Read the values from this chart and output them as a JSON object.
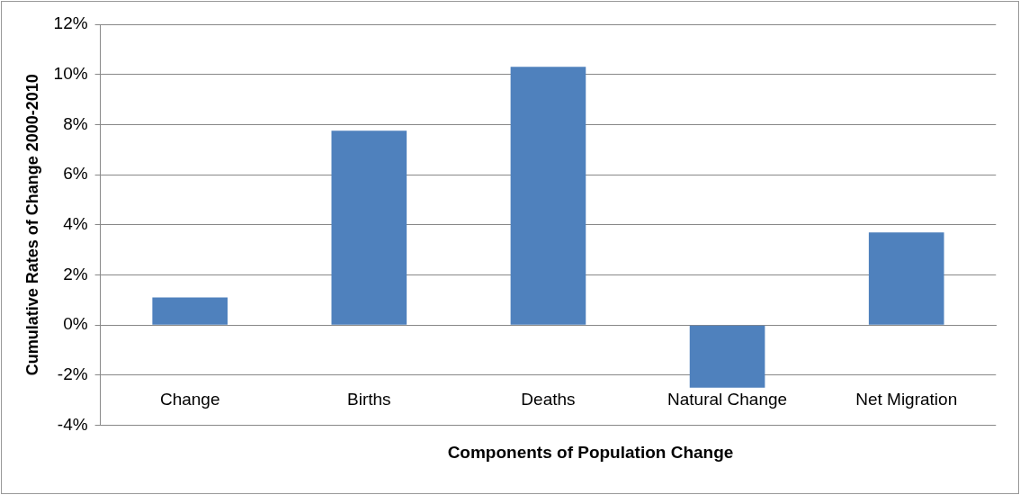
{
  "chart_data": {
    "type": "bar",
    "xlabel": "Components of Population Change",
    "ylabel": "Cumulative Rates of Change 2000-2010",
    "categories": [
      "Change",
      "Births",
      "Deaths",
      "Natural Change",
      "Net Migration"
    ],
    "values": [
      1.1,
      7.75,
      10.3,
      -2.5,
      3.7
    ],
    "color": "#4f81bd",
    "ylim": [
      -4,
      12
    ],
    "yticks": [
      {
        "value": -4,
        "label": "-4%"
      },
      {
        "value": -2,
        "label": "-2%"
      },
      {
        "value": 0,
        "label": "0%"
      },
      {
        "value": 2,
        "label": "2%"
      },
      {
        "value": 4,
        "label": "4%"
      },
      {
        "value": 6,
        "label": "6%"
      },
      {
        "value": 8,
        "label": "8%"
      },
      {
        "value": 10,
        "label": "10%"
      },
      {
        "value": 12,
        "label": "12%"
      }
    ],
    "grid": "y",
    "legend": false
  }
}
